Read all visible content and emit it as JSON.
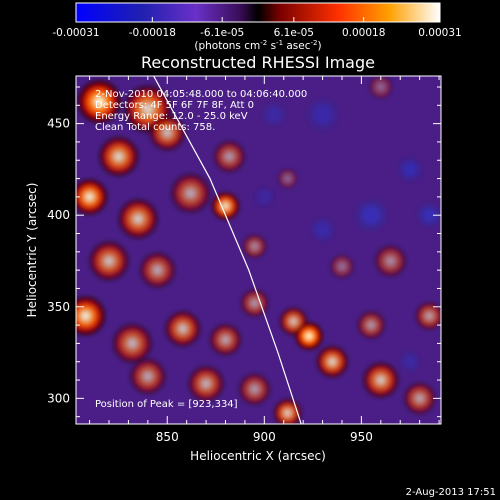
{
  "chart_data": {
    "type": "heatmap",
    "title": "Reconstructed RHESSI Image",
    "xlabel": "Heliocentric X (arcsec)",
    "ylabel": "Heliocentric Y (arcsec)",
    "xlim": [
      803,
      991
    ],
    "ylim": [
      286,
      476
    ],
    "xticks": [
      850,
      900,
      950
    ],
    "yticks": [
      300,
      350,
      400,
      450
    ],
    "colorbar": {
      "range": [
        -0.00031,
        0.00031
      ],
      "tick_values": [
        -0.00031,
        -0.00018,
        -6.1e-05,
        6.1e-05,
        0.00018,
        0.00031
      ],
      "tick_labels": [
        "-0.00031",
        "-0.00018",
        "-6.1e-05",
        "6.1e-05",
        "0.00018",
        "0.00031"
      ],
      "unit_parts": [
        "(photons cm",
        "-2",
        " s",
        "-1",
        " asec",
        "-2",
        ")"
      ]
    },
    "annotations": [
      "2-Nov-2010 04:05:48.000 to 04:06:40.000",
      "Detectors: 4F 5F 6F 7F 8F, Att 0",
      "Energy Range: 12.0 - 25.0 keV",
      "Clean     Total counts: 758."
    ],
    "peak_label": "Position of Peak = [923,334]",
    "peak": [
      923,
      334
    ],
    "limb": [
      [
        843,
        476
      ],
      [
        872,
        420
      ],
      [
        892,
        370
      ],
      [
        907,
        325
      ],
      [
        919,
        286
      ]
    ],
    "blobs": [
      {
        "x": 815,
        "y": 462,
        "s": 11,
        "a": 0.95
      },
      {
        "x": 840,
        "y": 458,
        "s": 12,
        "a": 0.8
      },
      {
        "x": 850,
        "y": 445,
        "s": 9,
        "a": 0.7
      },
      {
        "x": 825,
        "y": 432,
        "s": 10,
        "a": 0.8
      },
      {
        "x": 810,
        "y": 410,
        "s": 9,
        "a": 0.9
      },
      {
        "x": 835,
        "y": 398,
        "s": 10,
        "a": 0.75
      },
      {
        "x": 862,
        "y": 412,
        "s": 10,
        "a": 0.6
      },
      {
        "x": 882,
        "y": 432,
        "s": 8,
        "a": 0.55
      },
      {
        "x": 880,
        "y": 405,
        "s": 7,
        "a": 0.9
      },
      {
        "x": 895,
        "y": 383,
        "s": 6,
        "a": 0.5
      },
      {
        "x": 820,
        "y": 375,
        "s": 10,
        "a": 0.7
      },
      {
        "x": 845,
        "y": 370,
        "s": 9,
        "a": 0.6
      },
      {
        "x": 808,
        "y": 345,
        "s": 10,
        "a": 0.9
      },
      {
        "x": 832,
        "y": 330,
        "s": 10,
        "a": 0.65
      },
      {
        "x": 858,
        "y": 338,
        "s": 9,
        "a": 0.7
      },
      {
        "x": 880,
        "y": 332,
        "s": 8,
        "a": 0.6
      },
      {
        "x": 895,
        "y": 352,
        "s": 7,
        "a": 0.55
      },
      {
        "x": 840,
        "y": 312,
        "s": 9,
        "a": 0.6
      },
      {
        "x": 870,
        "y": 308,
        "s": 9,
        "a": 0.65
      },
      {
        "x": 895,
        "y": 305,
        "s": 8,
        "a": 0.55
      },
      {
        "x": 915,
        "y": 342,
        "s": 7,
        "a": 0.75
      },
      {
        "x": 923,
        "y": 334,
        "s": 7,
        "a": 1.0
      },
      {
        "x": 935,
        "y": 320,
        "s": 8,
        "a": 0.8
      },
      {
        "x": 955,
        "y": 340,
        "s": 7,
        "a": 0.55
      },
      {
        "x": 960,
        "y": 310,
        "s": 9,
        "a": 0.75
      },
      {
        "x": 980,
        "y": 300,
        "s": 8,
        "a": 0.6
      },
      {
        "x": 912,
        "y": 292,
        "s": 7,
        "a": 0.8
      },
      {
        "x": 985,
        "y": 345,
        "s": 7,
        "a": 0.6
      },
      {
        "x": 965,
        "y": 375,
        "s": 8,
        "a": 0.5
      },
      {
        "x": 940,
        "y": 372,
        "s": 6,
        "a": 0.4
      },
      {
        "x": 912,
        "y": 420,
        "s": 5,
        "a": 0.35
      },
      {
        "x": 960,
        "y": 470,
        "s": 6,
        "a": 0.35
      },
      {
        "x": 930,
        "y": 455,
        "s": -8,
        "a": 0.35
      },
      {
        "x": 955,
        "y": 400,
        "s": -8,
        "a": 0.45
      },
      {
        "x": 930,
        "y": 392,
        "s": -6,
        "a": 0.35
      },
      {
        "x": 905,
        "y": 455,
        "s": -6,
        "a": 0.3
      },
      {
        "x": 975,
        "y": 425,
        "s": -6,
        "a": 0.4
      },
      {
        "x": 985,
        "y": 400,
        "s": -6,
        "a": 0.45
      },
      {
        "x": 900,
        "y": 410,
        "s": -5,
        "a": 0.25
      },
      {
        "x": 975,
        "y": 320,
        "s": -5,
        "a": 0.3
      }
    ]
  },
  "footer": {
    "timestamp": "2-Aug-2013 17:51"
  },
  "colors": {
    "background": "#000000",
    "text": "#ffffff",
    "limb_line": "#ffffff"
  }
}
